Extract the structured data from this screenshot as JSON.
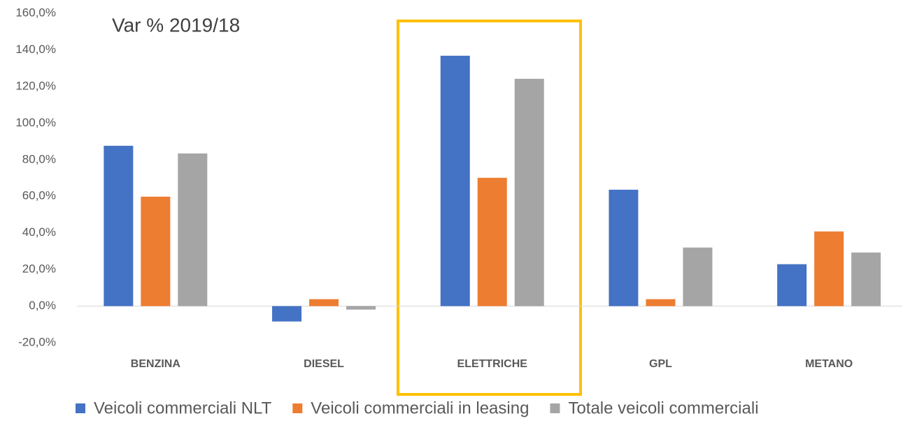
{
  "chart_data": {
    "type": "bar",
    "annotation": "Var % 2019/18",
    "categories": [
      "BENZINA",
      "DIESEL",
      "ELETTRICHE",
      "GPL",
      "METANO"
    ],
    "series": [
      {
        "name": "Veicoli commerciali NLT",
        "color": "#4472c4",
        "values": [
          87.6,
          -8.4,
          136.8,
          63.6,
          22.9
        ]
      },
      {
        "name": "Veicoli commerciali in leasing",
        "color": "#ed7d31",
        "values": [
          59.8,
          3.8,
          70.1,
          3.8,
          40.8
        ]
      },
      {
        "name": "Totale veicoli commerciali",
        "color": "#a5a5a5",
        "values": [
          83.4,
          -1.9,
          124.2,
          32.0,
          29.3
        ]
      }
    ],
    "ylim": [
      -20,
      160
    ],
    "yticks": [
      {
        "value": -20,
        "label": "-20,0%"
      },
      {
        "value": 0,
        "label": "0,0%"
      },
      {
        "value": 20,
        "label": "20,0%"
      },
      {
        "value": 40,
        "label": "40,0%"
      },
      {
        "value": 60,
        "label": "60,0%"
      },
      {
        "value": 80,
        "label": "80,0%"
      },
      {
        "value": 100,
        "label": "100,0%"
      },
      {
        "value": 120,
        "label": "120,0%"
      },
      {
        "value": 140,
        "label": "140,0%"
      },
      {
        "value": 160,
        "label": "160,0%"
      }
    ],
    "legend": "bottom"
  }
}
